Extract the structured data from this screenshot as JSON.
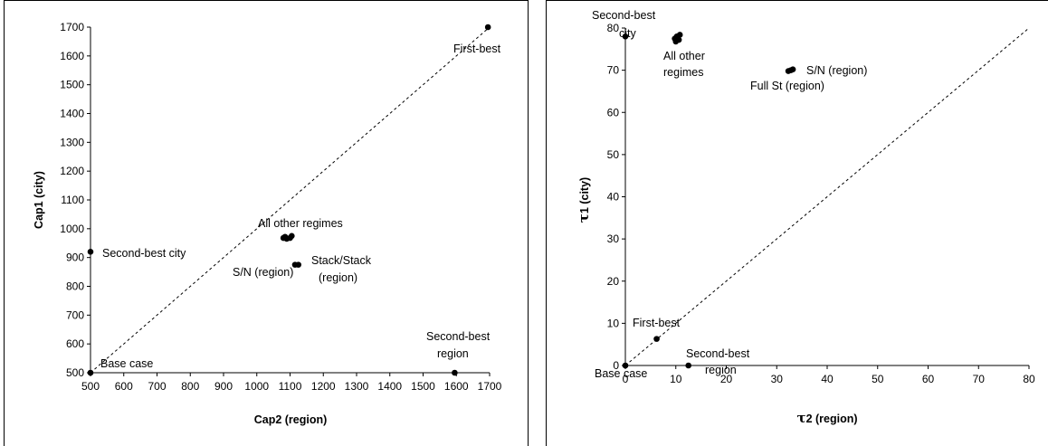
{
  "chart_data": [
    {
      "type": "scatter",
      "xlabel": "Cap2 (region)",
      "ylabel": "Cap1 (city)",
      "xlim": [
        500,
        1700
      ],
      "ylim": [
        500,
        1700
      ],
      "xticks": [
        "500",
        "600",
        "700",
        "800",
        "900",
        "1000",
        "1100",
        "1200",
        "1300",
        "1400",
        "1500",
        "1600",
        "1700"
      ],
      "yticks": [
        "500",
        "600",
        "700",
        "800",
        "900",
        "1000",
        "1100",
        "1200",
        "1300",
        "1400",
        "1500",
        "1600",
        "1700"
      ],
      "diagonal_line": true,
      "grid": false,
      "points": [
        {
          "x": 500,
          "y": 500
        },
        {
          "x": 500,
          "y": 920
        },
        {
          "x": 1595,
          "y": 500
        },
        {
          "x": 1695,
          "y": 1700
        },
        {
          "x": 1080,
          "y": 968
        },
        {
          "x": 1090,
          "y": 965
        },
        {
          "x": 1100,
          "y": 968
        },
        {
          "x": 1105,
          "y": 975
        },
        {
          "x": 1085,
          "y": 972
        },
        {
          "x": 1115,
          "y": 875
        },
        {
          "x": 1125,
          "y": 875
        }
      ],
      "annotations": [
        {
          "lines": [
            "Base case"
          ]
        },
        {
          "lines": [
            "Second-best city"
          ]
        },
        {
          "lines": [
            "Second-best",
            "region"
          ]
        },
        {
          "lines": [
            "First-best"
          ]
        },
        {
          "lines": [
            "All other regimes"
          ]
        },
        {
          "lines": [
            "S/N (region)"
          ]
        },
        {
          "lines": [
            "Stack/Stack",
            "(region)"
          ]
        }
      ]
    },
    {
      "type": "scatter",
      "xlabel_symbol": "τ",
      "xlabel_text": "2 (region)",
      "ylabel_symbol": "τ",
      "ylabel_text": "1 (city)",
      "xlim": [
        0,
        80
      ],
      "ylim": [
        0,
        80
      ],
      "xticks": [
        "0",
        "10",
        "20",
        "30",
        "40",
        "50",
        "60",
        "70",
        "80"
      ],
      "yticks": [
        "0",
        "10",
        "20",
        "30",
        "40",
        "50",
        "60",
        "70",
        "80"
      ],
      "diagonal_line": true,
      "grid": false,
      "points": [
        {
          "x": 0,
          "y": 0
        },
        {
          "x": 0,
          "y": 78
        },
        {
          "x": 6.2,
          "y": 6.3
        },
        {
          "x": 12.5,
          "y": 0
        },
        {
          "x": 9.8,
          "y": 77.5
        },
        {
          "x": 10.2,
          "y": 78.0
        },
        {
          "x": 10.6,
          "y": 77.2
        },
        {
          "x": 10.0,
          "y": 76.8
        },
        {
          "x": 10.8,
          "y": 78.4
        },
        {
          "x": 32.3,
          "y": 69.8
        },
        {
          "x": 32.8,
          "y": 70.0
        },
        {
          "x": 33.2,
          "y": 70.2
        }
      ],
      "annotations": [
        {
          "lines": [
            "Second-best",
            "city"
          ]
        },
        {
          "lines": [
            "All other",
            "regimes"
          ]
        },
        {
          "lines": [
            "S/N (region)"
          ]
        },
        {
          "lines": [
            "Full St (region)"
          ]
        },
        {
          "lines": [
            "First-best"
          ]
        },
        {
          "lines": [
            "Second-best",
            "region"
          ]
        },
        {
          "lines": [
            "Base case"
          ]
        }
      ]
    }
  ]
}
